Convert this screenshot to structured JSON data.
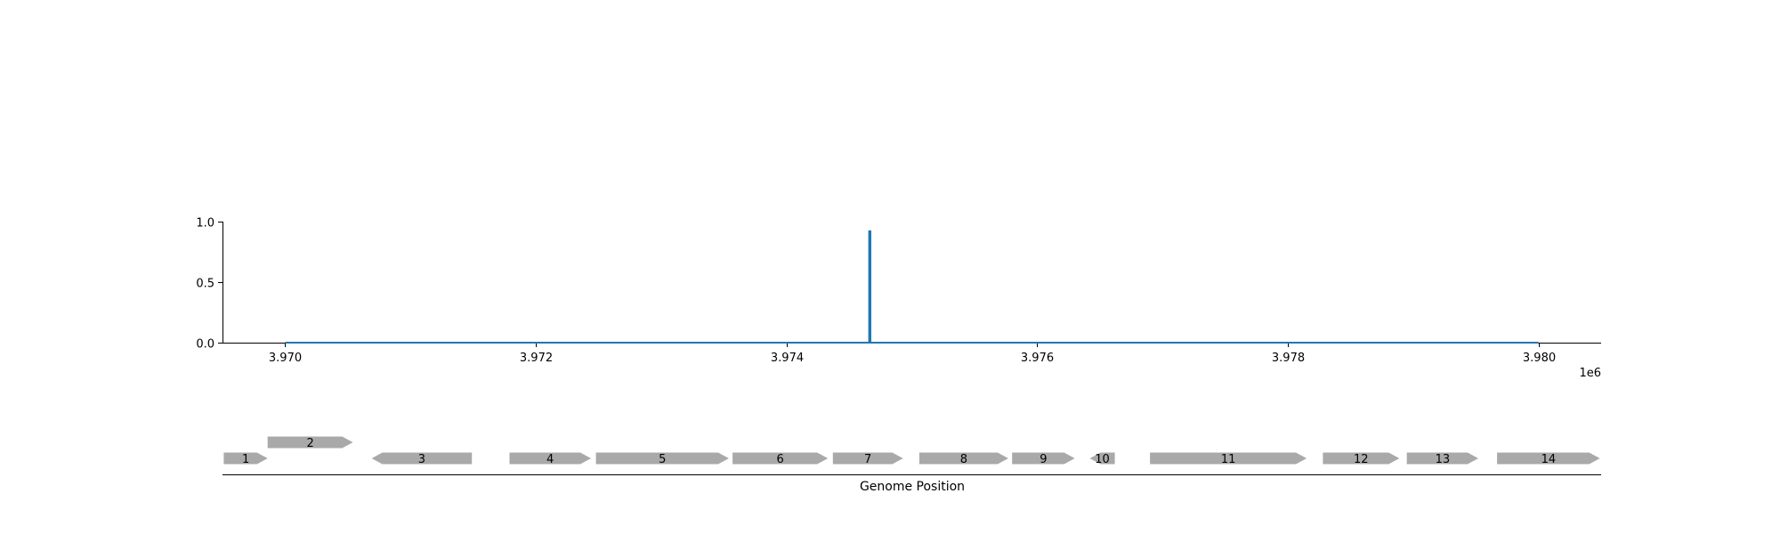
{
  "chart_data": [
    {
      "type": "line",
      "title": "",
      "xlabel": "",
      "ylabel": "",
      "x_offset_label": "1e6",
      "xlim": [
        3969500,
        3980500
      ],
      "ylim": [
        0,
        1.0
      ],
      "x_ticks": [
        3970000,
        3972000,
        3974000,
        3976000,
        3978000,
        3980000
      ],
      "x_tick_labels": [
        "3.970",
        "3.972",
        "3.974",
        "3.976",
        "3.978",
        "3.980"
      ],
      "y_ticks": [
        0.0,
        0.5,
        1.0
      ],
      "y_tick_labels": [
        "0.0",
        "0.5",
        "1.0"
      ],
      "grid": false,
      "legend": "none",
      "series": [
        {
          "color": "#1f77b4",
          "points": [
            [
              3970000,
              0.0
            ],
            [
              3974660,
              0.0
            ],
            [
              3974660,
              0.92
            ],
            [
              3974670,
              0.92
            ],
            [
              3974670,
              0.0
            ],
            [
              3980000,
              0.0
            ]
          ]
        }
      ]
    },
    {
      "type": "gene-map",
      "xlabel": "Genome Position",
      "xlim": [
        3969500,
        3980500
      ],
      "feature_color": "#a9a9a9",
      "genes": [
        {
          "label": "1",
          "start": 3969510,
          "end": 3969860,
          "strand": "+",
          "row": 0
        },
        {
          "label": "2",
          "start": 3969860,
          "end": 3970540,
          "strand": "+",
          "row": 1
        },
        {
          "label": "3",
          "start": 3970690,
          "end": 3971490,
          "strand": "-",
          "row": 0
        },
        {
          "label": "4",
          "start": 3971790,
          "end": 3972440,
          "strand": "+",
          "row": 0
        },
        {
          "label": "5",
          "start": 3972480,
          "end": 3973540,
          "strand": "+",
          "row": 0
        },
        {
          "label": "6",
          "start": 3973570,
          "end": 3974330,
          "strand": "+",
          "row": 0
        },
        {
          "label": "7",
          "start": 3974370,
          "end": 3974930,
          "strand": "+",
          "row": 0
        },
        {
          "label": "8",
          "start": 3975060,
          "end": 3975770,
          "strand": "+",
          "row": 0
        },
        {
          "label": "9",
          "start": 3975800,
          "end": 3976300,
          "strand": "+",
          "row": 0
        },
        {
          "label": "10",
          "start": 3976420,
          "end": 3976620,
          "strand": "-",
          "row": 0
        },
        {
          "label": "11",
          "start": 3976900,
          "end": 3978150,
          "strand": "+",
          "row": 0
        },
        {
          "label": "12",
          "start": 3978280,
          "end": 3978890,
          "strand": "+",
          "row": 0
        },
        {
          "label": "13",
          "start": 3978950,
          "end": 3979520,
          "strand": "+",
          "row": 0
        },
        {
          "label": "14",
          "start": 3979670,
          "end": 3980490,
          "strand": "+",
          "row": 0
        }
      ]
    }
  ]
}
